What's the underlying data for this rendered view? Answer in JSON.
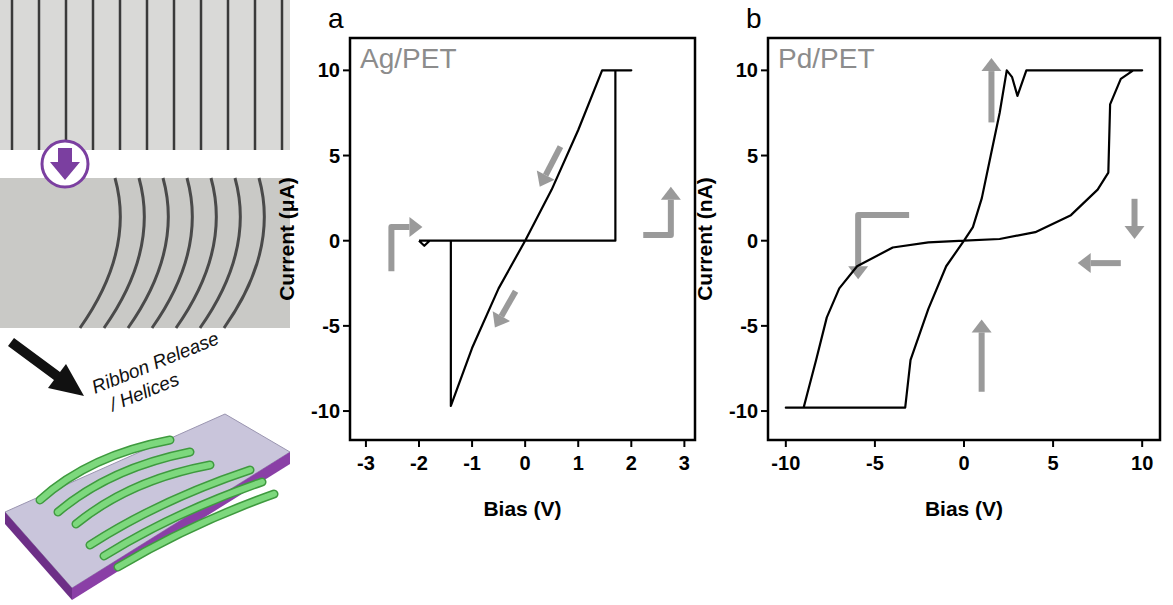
{
  "schematic": {
    "label_lines": [
      "Ribbon Release",
      "/ Helices"
    ]
  },
  "chart_data": [
    {
      "type": "line",
      "panel_label": "a",
      "title": "Ag/PET",
      "x_label": "Bias (V)",
      "y_label": "Current (μA)",
      "color": "#000000",
      "x": [
        -2,
        -1.9,
        -1.8,
        -1.6,
        0,
        1.7,
        1.7,
        2,
        1.45,
        1,
        0.5,
        0,
        -0.5,
        -1,
        -1.4,
        -1.4,
        -2
      ],
      "values": [
        0,
        -0.3,
        0,
        0,
        0,
        0,
        10,
        10,
        10,
        6.5,
        3,
        0,
        -2.8,
        -6.3,
        -9.7,
        0,
        0
      ],
      "xlim": [
        -3.3,
        3.2
      ],
      "ylim": [
        -11.7,
        11.9
      ],
      "xticks": [
        -3,
        -2,
        -1,
        0,
        1,
        2,
        3
      ],
      "yticks": [
        -10,
        -5,
        0,
        5,
        10
      ]
    },
    {
      "type": "line",
      "panel_label": "b",
      "title": "Pd/PET",
      "x_label": "Bias (V)",
      "y_label": "Current (nA)",
      "color": "#000000",
      "x": [
        0,
        0.5,
        1,
        1.5,
        2,
        2.4,
        2.7,
        3,
        3.5,
        10,
        9.5,
        8.8,
        8.2,
        8.1,
        7.5,
        6,
        4,
        2,
        0,
        -2,
        -4,
        -6,
        -7,
        -7.7,
        -8.3,
        -8.8,
        -9,
        -10,
        -3.3,
        -3,
        -2,
        -1,
        0
      ],
      "values": [
        0,
        0.8,
        2.5,
        5,
        7.5,
        10,
        9.6,
        8.5,
        10,
        10,
        10,
        9.5,
        8,
        4,
        3,
        1.5,
        0.5,
        0.1,
        0,
        -0.1,
        -0.4,
        -1.5,
        -2.8,
        -4.5,
        -7,
        -9,
        -9.8,
        -9.8,
        -9.8,
        -7,
        -4,
        -1.5,
        0
      ],
      "xlim": [
        -11,
        11
      ],
      "ylim": [
        -11.7,
        11.9
      ],
      "xticks": [
        -10,
        -5,
        0,
        5,
        10
      ],
      "yticks": [
        -10,
        -5,
        0,
        5,
        10
      ]
    }
  ]
}
